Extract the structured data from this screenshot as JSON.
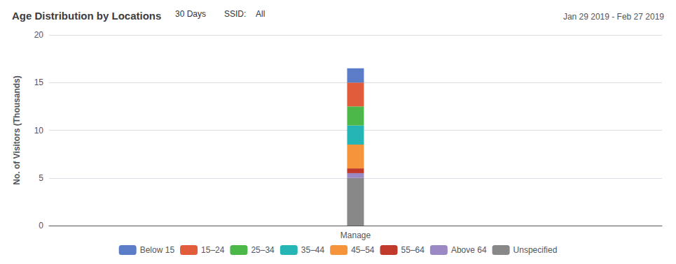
{
  "chart_data": {
    "type": "bar",
    "stacked": true,
    "title": "Age Distribution by Locations",
    "subtitle": "Jan 29 2019 - Feb 27 2019",
    "annotations": [
      "30 Days",
      "SSID:",
      "All"
    ],
    "ylabel": "No. of Visitors (Thousands)",
    "categories": [
      "Manage"
    ],
    "series": [
      {
        "name": "Below 15",
        "color": "#5b7dc8",
        "values": [
          1.5
        ]
      },
      {
        "name": "15–24",
        "color": "#e05c3a",
        "values": [
          2.5
        ]
      },
      {
        "name": "25–34",
        "color": "#4cb84a",
        "values": [
          2.0
        ]
      },
      {
        "name": "35–44",
        "color": "#26b5b5",
        "values": [
          2.0
        ]
      },
      {
        "name": "45–54",
        "color": "#f5943a",
        "values": [
          2.5
        ]
      },
      {
        "name": "55–64",
        "color": "#c0392b",
        "values": [
          0.5
        ]
      },
      {
        "name": "Above 64",
        "color": "#9b89c4",
        "values": [
          0.5
        ]
      },
      {
        "name": "Unspecified",
        "color": "#888888",
        "values": [
          5.0
        ]
      }
    ],
    "ylim": [
      0,
      20
    ],
    "yticks": [
      0,
      5,
      10,
      15,
      20
    ],
    "grid": true
  }
}
